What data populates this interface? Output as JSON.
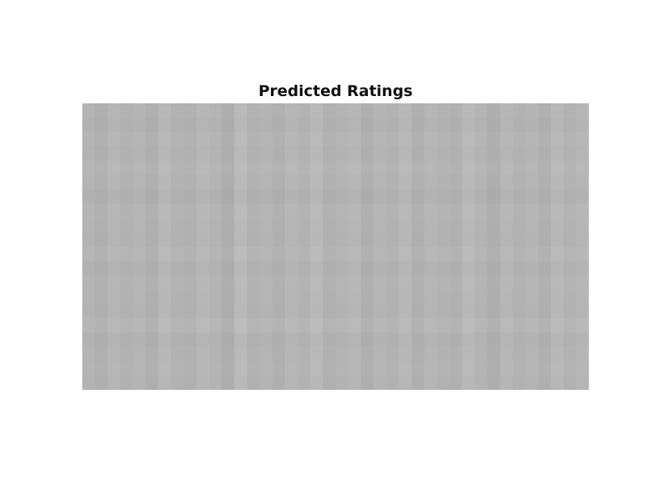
{
  "title": "Predicted Ratings",
  "chart_data": {
    "type": "heatmap",
    "title": "Predicted Ratings",
    "colormap": "gray",
    "base_color": "#b4b4b4",
    "column_shades": [
      180,
      176,
      182,
      178,
      181,
      175,
      184,
      179,
      177,
      183,
      180,
      174,
      186,
      178,
      181,
      176,
      182,
      179,
      185,
      177,
      180,
      183,
      175,
      181,
      178,
      184,
      176,
      182,
      179,
      177,
      185,
      180,
      174,
      183,
      178,
      181,
      176,
      184,
      179,
      182
    ],
    "row_shades": [
      0,
      -2,
      1,
      -1,
      2,
      0,
      -3,
      1,
      0,
      -1,
      2,
      -2,
      1,
      0,
      -1,
      3,
      -2,
      0,
      1,
      -1
    ],
    "axes_visible": false,
    "grid": false
  }
}
